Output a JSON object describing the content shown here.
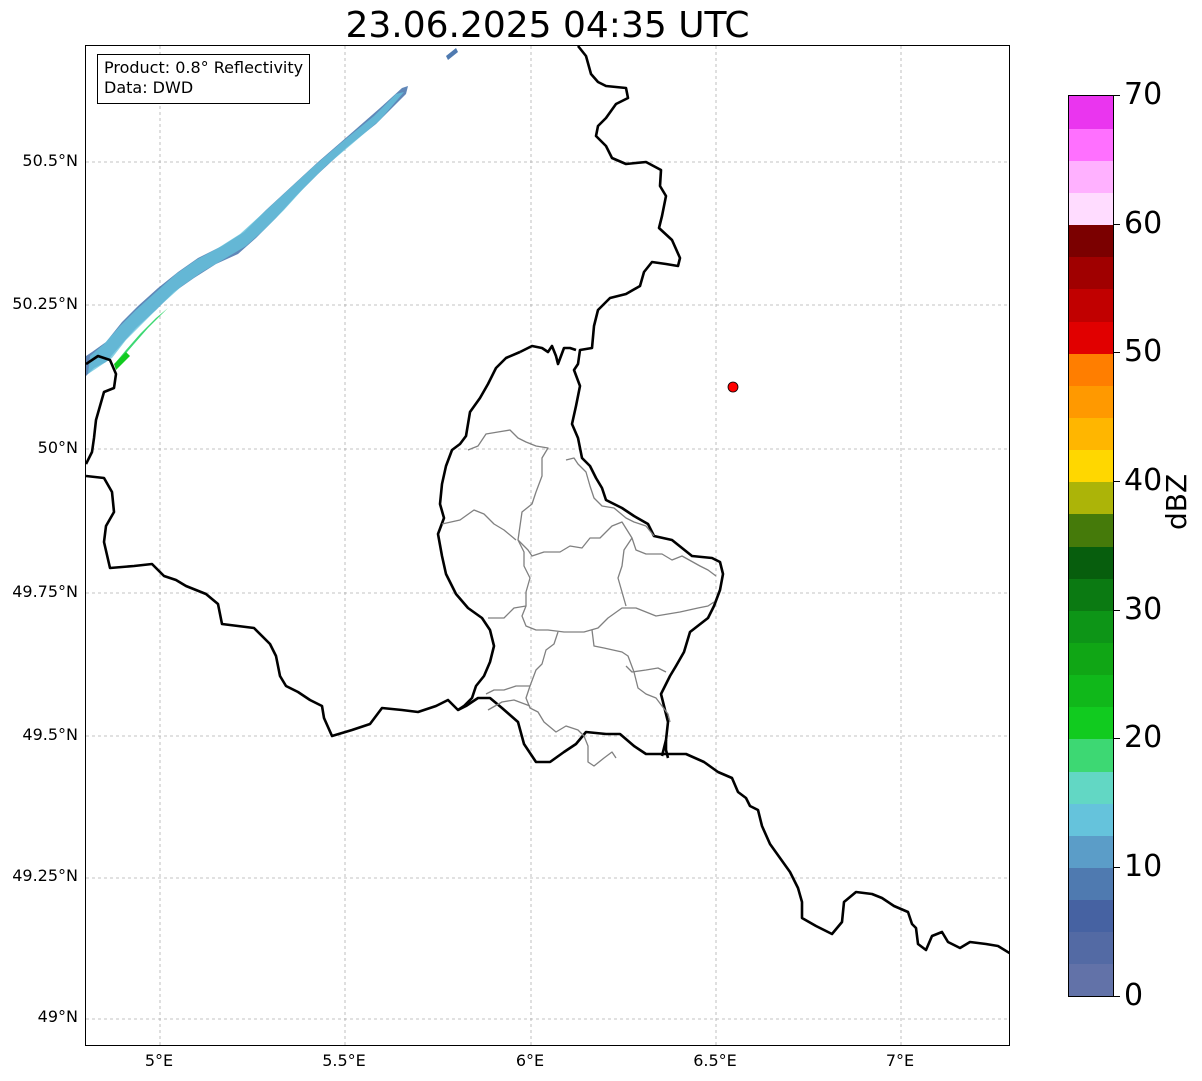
{
  "title": "23.06.2025 04:35 UTC",
  "info_box": {
    "product": "Product: 0.8° Reflectivity",
    "data": "Data: DWD"
  },
  "axes": {
    "y_ticks": [
      "50.5°N",
      "50.25°N",
      "50°N",
      "49.75°N",
      "49.5°N",
      "49.25°N",
      "49°N"
    ],
    "x_ticks": [
      "5°E",
      "5.5°E",
      "6°E",
      "6.5°E",
      "7°E"
    ]
  },
  "colorbar": {
    "label": "dBZ",
    "ticks": [
      "0",
      "10",
      "20",
      "30",
      "40",
      "50",
      "60",
      "70"
    ],
    "colors": [
      "#6272a8",
      "#536aa4",
      "#4662a2",
      "#4f7ab0",
      "#5b9dc8",
      "#65c3dc",
      "#62d7c4",
      "#3dd873",
      "#11cb1f",
      "#10b81a",
      "#10a615",
      "#0d9517",
      "#0b7a12",
      "#075e0d",
      "#457a0a",
      "#acb408",
      "#ffd700",
      "#ffb600",
      "#ff9900",
      "#ff7e00",
      "#e10000",
      "#c10000",
      "#a00000",
      "#7b0000",
      "#ffdcff",
      "#ffb1ff",
      "#ff70ff",
      "#ea35ef"
    ]
  },
  "site_marker": {
    "color": "#ff0000",
    "lon": 6.55,
    "lat": 50.11
  },
  "colors": {
    "border_major": "#000000",
    "border_minor": "#808080",
    "grid": "#b0b0b0"
  }
}
